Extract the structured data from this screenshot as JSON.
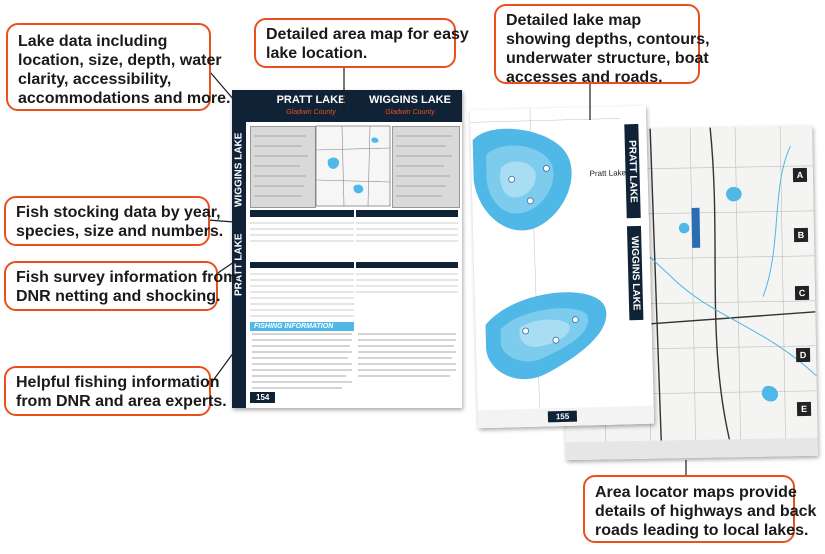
{
  "callouts": {
    "lake_data": [
      "Lake data including",
      "location, size, depth, water",
      "clarity, accessibility,",
      "accommodations and more."
    ],
    "area_map": [
      "Detailed area map for easy",
      "lake location."
    ],
    "lake_map": [
      "Detailed lake map",
      "showing depths, contours,",
      "underwater structure, boat",
      "accesses and roads."
    ],
    "stocking": [
      "Fish stocking data by year,",
      "species, size and numbers."
    ],
    "survey": [
      "Fish survey information from",
      "DNR netting and shocking."
    ],
    "fishing_info": [
      "Helpful fishing information",
      "from DNR and area experts."
    ],
    "locator": [
      "Area locator maps provide",
      "details of highways and back",
      "roads leading to local lakes."
    ]
  },
  "left_page": {
    "lake1_name": "PRATT LAKE",
    "lake1_county": "Gladwin County",
    "lake2_name": "WIGGINS LAKE",
    "lake2_county": "Gladwin County",
    "tab_top": "WIGGINS LAKE",
    "tab_bottom": "PRATT LAKE",
    "fishing_header": "FISHING INFORMATION",
    "page_number": "154"
  },
  "middle_page": {
    "lake_label": "Pratt Lake",
    "tab_top": "PRATT LAKE",
    "tab_bottom": "WIGGINS LAKE",
    "page_number": "155"
  },
  "right_page": {
    "markers": [
      "A",
      "B",
      "C",
      "D",
      "E"
    ]
  },
  "colors": {
    "accent": "#e8501e",
    "navy": "#0f2236",
    "water": "#4fb8e6"
  }
}
